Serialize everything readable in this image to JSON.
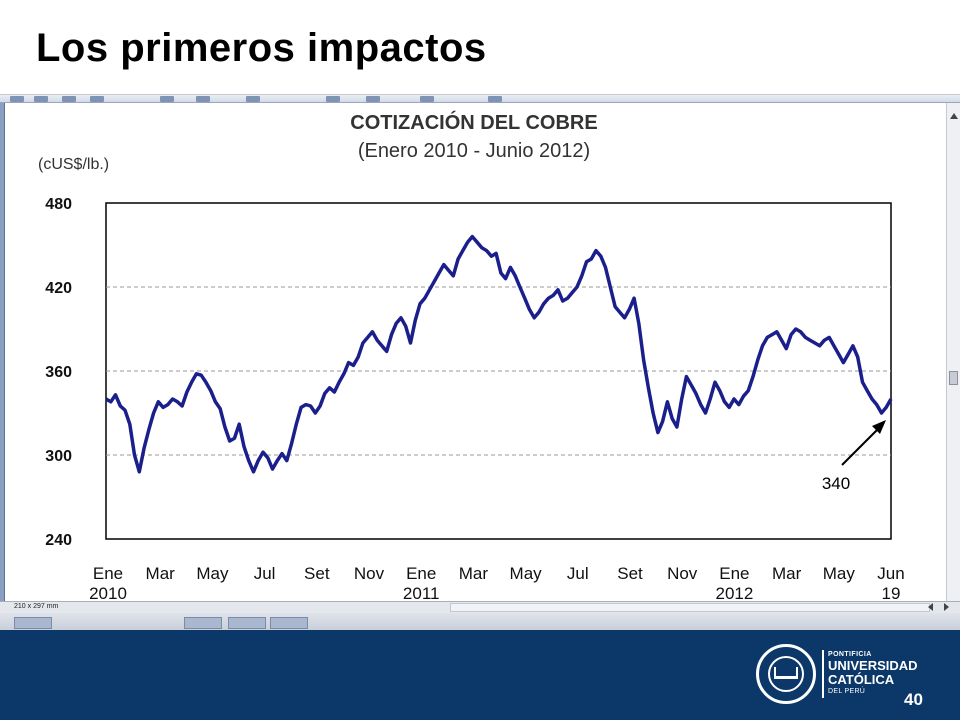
{
  "slide": {
    "title": "Los primeros impactos",
    "page_number": "40"
  },
  "window": {
    "status_text": "210 x 297 mm"
  },
  "colors": {
    "series": "#1a1f8c",
    "footer": "#0b3868",
    "gridline": "#9a9a9a"
  },
  "logo": {
    "line1": "PONTIFICIA",
    "line2": "UNIVERSIDAD",
    "line3": "CATÓLICA",
    "line4": "DEL PERÚ"
  },
  "chart_data": {
    "type": "line",
    "title": "COTIZACIÓN DEL COBRE",
    "subtitle": "(Enero 2010 - Junio 2012)",
    "ylabel": "(cUS$/lb.)",
    "ylim": [
      240,
      480
    ],
    "yticks": [
      "480",
      "420",
      "360",
      "300",
      "240"
    ],
    "grid": true,
    "x_tick_labels": [
      {
        "month": "Ene",
        "year": "2010"
      },
      {
        "month": "Mar",
        "year": ""
      },
      {
        "month": "May",
        "year": ""
      },
      {
        "month": "Jul",
        "year": ""
      },
      {
        "month": "Set",
        "year": ""
      },
      {
        "month": "Nov",
        "year": ""
      },
      {
        "month": "Ene",
        "year": "2011"
      },
      {
        "month": "Mar",
        "year": ""
      },
      {
        "month": "May",
        "year": ""
      },
      {
        "month": "Jul",
        "year": ""
      },
      {
        "month": "Set",
        "year": ""
      },
      {
        "month": "Nov",
        "year": ""
      },
      {
        "month": "Ene",
        "year": "2012"
      },
      {
        "month": "Mar",
        "year": ""
      },
      {
        "month": "May",
        "year": ""
      },
      {
        "month": "Jun",
        "year": "19"
      }
    ],
    "annotation": "340",
    "series": [
      {
        "values": [
          340,
          338,
          343,
          335,
          332,
          322,
          300,
          288,
          305,
          318,
          330,
          338,
          334,
          336,
          340,
          338,
          335,
          345,
          352,
          358,
          357,
          352,
          346,
          338,
          333,
          320,
          310,
          312,
          322,
          306,
          296,
          288,
          296,
          302,
          298,
          290,
          296,
          301,
          296,
          308,
          322,
          334,
          336,
          335,
          330,
          335,
          344,
          348,
          345,
          352,
          358,
          366,
          364,
          370,
          380,
          384,
          388,
          382,
          378,
          374,
          386,
          394,
          398,
          392,
          380,
          396,
          408,
          412,
          418,
          424,
          430,
          436,
          432,
          428,
          440,
          446,
          452,
          456,
          452,
          448,
          446,
          442,
          444,
          430,
          426,
          434,
          428,
          420,
          412,
          404,
          398,
          402,
          408,
          412,
          414,
          418,
          410,
          412,
          416,
          420,
          428,
          438,
          440,
          446,
          442,
          434,
          420,
          406,
          402,
          398,
          404,
          412,
          394,
          368,
          348,
          330,
          316,
          324,
          338,
          326,
          320,
          340,
          356,
          350,
          344,
          336,
          330,
          340,
          352,
          346,
          338,
          334,
          340,
          336,
          342,
          346,
          356,
          368,
          378,
          384,
          386,
          388,
          382,
          376,
          386,
          390,
          388,
          384,
          382,
          380,
          378,
          382,
          384,
          378,
          372,
          366,
          372,
          378,
          370,
          352,
          346,
          340,
          336,
          330,
          334,
          340
        ]
      }
    ]
  }
}
